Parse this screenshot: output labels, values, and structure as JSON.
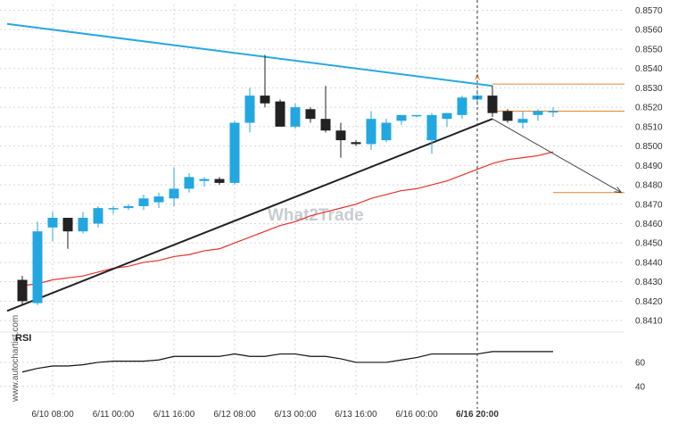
{
  "colors": {
    "bull": "#23a7e0",
    "bear": "#222222",
    "resistance": "#29a8e0",
    "support": "#222222",
    "ma": "#e8312a",
    "level": "#e8842a",
    "arrow": "#444444",
    "grid": "#d7d7d7",
    "rsi": "#111111"
  },
  "watermark": {
    "logo": "What2Trade",
    "side": "www.autochartist.com"
  },
  "chart_data": {
    "type": "candlestick",
    "instrument_panel": "price",
    "ylim": [
      0.8405,
      0.8573
    ],
    "y_ticks": [
      "0.8410",
      "0.8420",
      "0.8430",
      "0.8440",
      "0.8450",
      "0.8460",
      "0.8470",
      "0.8480",
      "0.8490",
      "0.8500",
      "0.8510",
      "0.8520",
      "0.8530",
      "0.8540",
      "0.8550",
      "0.8560",
      "0.8570"
    ],
    "x_ticks": [
      {
        "label": "6/10 08:00",
        "bar": 2
      },
      {
        "label": "6/11 00:00",
        "bar": 6
      },
      {
        "label": "6/11 16:00",
        "bar": 10
      },
      {
        "label": "6/12 08:00",
        "bar": 14
      },
      {
        "label": "6/13 00:00",
        "bar": 18
      },
      {
        "label": "6/13 16:00",
        "bar": 22
      },
      {
        "label": "6/16 00:00",
        "bar": 26
      },
      {
        "label": "6/16 20:00",
        "bar": 30,
        "bold": true
      }
    ],
    "candles": [
      {
        "o": 0.8431,
        "h": 0.8433,
        "l": 0.8418,
        "c": 0.842
      },
      {
        "o": 0.8419,
        "h": 0.8461,
        "l": 0.8418,
        "c": 0.8456
      },
      {
        "o": 0.8458,
        "h": 0.8466,
        "l": 0.8451,
        "c": 0.8463
      },
      {
        "o": 0.8463,
        "h": 0.8463,
        "l": 0.8447,
        "c": 0.8456
      },
      {
        "o": 0.8456,
        "h": 0.8466,
        "l": 0.8455,
        "c": 0.8463
      },
      {
        "o": 0.846,
        "h": 0.8469,
        "l": 0.8458,
        "c": 0.8468
      },
      {
        "o": 0.8468,
        "h": 0.8469,
        "l": 0.8465,
        "c": 0.8468
      },
      {
        "o": 0.8468,
        "h": 0.847,
        "l": 0.8467,
        "c": 0.8469
      },
      {
        "o": 0.8469,
        "h": 0.8475,
        "l": 0.8467,
        "c": 0.8473
      },
      {
        "o": 0.8471,
        "h": 0.8476,
        "l": 0.8468,
        "c": 0.8474
      },
      {
        "o": 0.8473,
        "h": 0.8489,
        "l": 0.8469,
        "c": 0.8478
      },
      {
        "o": 0.8478,
        "h": 0.8486,
        "l": 0.8476,
        "c": 0.8484
      },
      {
        "o": 0.8482,
        "h": 0.8484,
        "l": 0.8479,
        "c": 0.8483
      },
      {
        "o": 0.8483,
        "h": 0.8484,
        "l": 0.848,
        "c": 0.8481
      },
      {
        "o": 0.8481,
        "h": 0.8513,
        "l": 0.848,
        "c": 0.8512
      },
      {
        "o": 0.8512,
        "h": 0.853,
        "l": 0.8507,
        "c": 0.8526
      },
      {
        "o": 0.8526,
        "h": 0.8547,
        "l": 0.852,
        "c": 0.8522
      },
      {
        "o": 0.8523,
        "h": 0.8524,
        "l": 0.851,
        "c": 0.851
      },
      {
        "o": 0.851,
        "h": 0.8522,
        "l": 0.8509,
        "c": 0.852
      },
      {
        "o": 0.8519,
        "h": 0.852,
        "l": 0.8512,
        "c": 0.8514
      },
      {
        "o": 0.8514,
        "h": 0.8531,
        "l": 0.8507,
        "c": 0.8508
      },
      {
        "o": 0.8508,
        "h": 0.8512,
        "l": 0.8494,
        "c": 0.8503
      },
      {
        "o": 0.8502,
        "h": 0.8503,
        "l": 0.85,
        "c": 0.8501
      },
      {
        "o": 0.8501,
        "h": 0.8518,
        "l": 0.8498,
        "c": 0.8514
      },
      {
        "o": 0.8503,
        "h": 0.8514,
        "l": 0.8502,
        "c": 0.8512
      },
      {
        "o": 0.8513,
        "h": 0.8516,
        "l": 0.8511,
        "c": 0.8516
      },
      {
        "o": 0.8516,
        "h": 0.8516,
        "l": 0.8515,
        "c": 0.8516
      },
      {
        "o": 0.8503,
        "h": 0.8517,
        "l": 0.8496,
        "c": 0.8516
      },
      {
        "o": 0.8514,
        "h": 0.8517,
        "l": 0.851,
        "c": 0.8517
      },
      {
        "o": 0.8516,
        "h": 0.8526,
        "l": 0.8514,
        "c": 0.8525
      },
      {
        "o": 0.8524,
        "h": 0.8529,
        "l": 0.8521,
        "c": 0.8526
      },
      {
        "o": 0.8526,
        "h": 0.8531,
        "l": 0.8515,
        "c": 0.8517
      },
      {
        "o": 0.8518,
        "h": 0.8519,
        "l": 0.8512,
        "c": 0.8513
      },
      {
        "o": 0.8512,
        "h": 0.8518,
        "l": 0.8509,
        "c": 0.8514
      },
      {
        "o": 0.8516,
        "h": 0.8519,
        "l": 0.8513,
        "c": 0.8518
      },
      {
        "o": 0.8518,
        "h": 0.852,
        "l": 0.8515,
        "c": 0.8518
      }
    ],
    "moving_average": [
      0.8428,
      0.8429,
      0.8431,
      0.8432,
      0.8433,
      0.8435,
      0.8437,
      0.8438,
      0.844,
      0.8441,
      0.8443,
      0.8444,
      0.8446,
      0.8447,
      0.845,
      0.8453,
      0.8456,
      0.8459,
      0.8461,
      0.8464,
      0.8466,
      0.8468,
      0.847,
      0.8473,
      0.8475,
      0.8477,
      0.8478,
      0.848,
      0.8482,
      0.8485,
      0.8488,
      0.8491,
      0.8493,
      0.8494,
      0.8495,
      0.8497
    ],
    "resistance_line": {
      "from": {
        "bar": -1,
        "y": 0.8563
      },
      "to": {
        "bar": 31,
        "y": 0.8531
      }
    },
    "support_line": {
      "from": {
        "bar": -1,
        "y": 0.8415
      },
      "to": {
        "bar": 31,
        "y": 0.8514
      }
    },
    "levels": [
      {
        "y": 0.8532,
        "from_bar": 31,
        "to_bar": 40
      },
      {
        "y": 0.8518,
        "from_bar": 31,
        "to_bar": 40
      },
      {
        "y": 0.8476,
        "from_bar": 35,
        "to_bar": 40
      }
    ],
    "forecast_arrow": {
      "from": {
        "bar": 31,
        "y": 0.8514
      },
      "to": {
        "bar": 39.5,
        "y": 0.8476
      }
    },
    "apex_label": "A",
    "apex": {
      "bar": 30,
      "y": 0.8534
    },
    "current_time_bar": 30,
    "rsi": {
      "label": "RSI",
      "ylim": [
        31,
        83
      ],
      "y_ticks": [
        "40",
        "60"
      ],
      "values": [
        52,
        55,
        57,
        57,
        58,
        60,
        61,
        61,
        61,
        62,
        65,
        65,
        65,
        65,
        67,
        65,
        65,
        67,
        67,
        65,
        65,
        63,
        60,
        60,
        60,
        62,
        64,
        67,
        67,
        67,
        67,
        69,
        69,
        69,
        69,
        69
      ]
    }
  }
}
